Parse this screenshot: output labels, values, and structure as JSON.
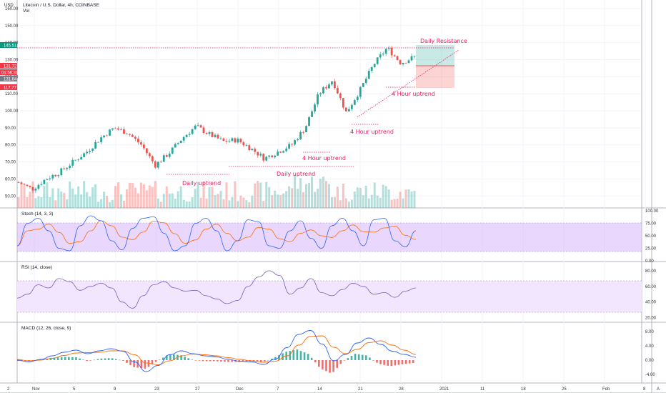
{
  "header": {
    "currency": "USD",
    "symbol_title": "Litecoin / U.S. Dollar, 4h, COINBASE",
    "vol_label": "Vol"
  },
  "price_axis": {
    "ticks": [
      "160.00",
      "150.00",
      "140.00",
      "130.00",
      "120.00",
      "110.00",
      "100.00",
      "90.00",
      "80.00",
      "70.00",
      "60.00",
      "50.00"
    ],
    "badges": [
      {
        "text": "145.51",
        "color": "#089981"
      },
      {
        "text": "131.72",
        "color": "#f23645"
      },
      {
        "text": "01:56:31",
        "color": "#f23645"
      },
      {
        "text": "131.64",
        "color": "#787b86"
      },
      {
        "text": "117.77",
        "color": "#f23645"
      }
    ]
  },
  "annotations": {
    "daily_resistance": "Daily Resistance",
    "daily_uptrend_1": "Daily uptrend",
    "daily_uptrend_2": "Daily uptrend",
    "four_hour_1": "4 Hour uptrend",
    "four_hour_2": "4 Hour uptrend",
    "four_hour_3": "4 Hour uptrend"
  },
  "panes": {
    "stoch": {
      "title": "Stoch (14, 3, 3)",
      "ticks": [
        "100.00",
        "75.00",
        "50.00",
        "25.00",
        "0.00"
      ]
    },
    "rsi": {
      "title": "RSI (14, close)",
      "ticks": [
        "80.00",
        "60.00",
        "40.00",
        "20.00"
      ]
    },
    "macd": {
      "title": "MACD (12, 26, close, 9)",
      "ticks": [
        "8.00",
        "4.00",
        "0.00",
        "-4.00"
      ]
    }
  },
  "time_axis": {
    "ticks": [
      "Nov",
      "5",
      "9",
      "23",
      "27",
      "Dec",
      "7",
      "14",
      "21",
      "28",
      "2021",
      "11",
      "18",
      "25",
      "Feb",
      "8"
    ],
    "corner_left": "2",
    "corner_right": "A"
  },
  "colors": {
    "up": "#26a69a",
    "down": "#ef5350",
    "stoch_band": "#d8b6fb",
    "rsi_band": "#f1e6fd",
    "annotation": "#e91e63",
    "k_line": "#2962ff",
    "d_line": "#ff6d00",
    "rsi_line": "#7e57c2"
  },
  "chart_data": {
    "type": "candlestick",
    "title": "Litecoin / U.S. Dollar, 4h, COINBASE",
    "ylabel": "USD",
    "ylim": [
      43,
      165
    ],
    "levels": {
      "daily_resistance": 145.51,
      "last_price": 131.72,
      "stop": 117.77,
      "daily_uptrend_1": 62.5,
      "daily_uptrend_2": 67.5
    },
    "price_waypoints": [
      {
        "x": "Oct 29",
        "close": 58
      },
      {
        "x": "Nov 3",
        "close": 54
      },
      {
        "x": "Nov 7",
        "close": 60
      },
      {
        "x": "Nov 11",
        "close": 64
      },
      {
        "x": "Nov 15",
        "close": 70
      },
      {
        "x": "Nov 17",
        "close": 76
      },
      {
        "x": "Nov 19",
        "close": 84
      },
      {
        "x": "Nov 21",
        "close": 90
      },
      {
        "x": "Nov 23",
        "close": 87
      },
      {
        "x": "Nov 25",
        "close": 80
      },
      {
        "x": "Nov 26",
        "close": 68
      },
      {
        "x": "Nov 28",
        "close": 75
      },
      {
        "x": "Nov 30",
        "close": 84
      },
      {
        "x": "Dec 1",
        "close": 91
      },
      {
        "x": "Dec 3",
        "close": 86
      },
      {
        "x": "Dec 5",
        "close": 82
      },
      {
        "x": "Dec 7",
        "close": 83
      },
      {
        "x": "Dec 9",
        "close": 78
      },
      {
        "x": "Dec 11",
        "close": 72
      },
      {
        "x": "Dec 13",
        "close": 76
      },
      {
        "x": "Dec 15",
        "close": 80
      },
      {
        "x": "Dec 16",
        "close": 90
      },
      {
        "x": "Dec 18",
        "close": 110
      },
      {
        "x": "Dec 20",
        "close": 118
      },
      {
        "x": "Dec 22",
        "close": 99
      },
      {
        "x": "Dec 24",
        "close": 112
      },
      {
        "x": "Dec 26",
        "close": 127
      },
      {
        "x": "Dec 28",
        "close": 137
      },
      {
        "x": "Dec 30",
        "close": 128
      },
      {
        "x": "Jan 1",
        "close": 131.7
      }
    ],
    "stoch_ylim": [
      0,
      100
    ],
    "stoch_band": [
      20,
      80
    ],
    "stoch_k": [
      30,
      75,
      85,
      60,
      25,
      20,
      70,
      90,
      80,
      40,
      22,
      65,
      85,
      88,
      55,
      20,
      30,
      75,
      85,
      60,
      20,
      40,
      82,
      78,
      30,
      25,
      60,
      80,
      45,
      25,
      70,
      85,
      60,
      30,
      82,
      85,
      40,
      28,
      60
    ],
    "rsi_ylim": [
      15,
      90
    ],
    "rsi_band": [
      30,
      70
    ],
    "rsi": [
      45,
      50,
      62,
      58,
      70,
      66,
      55,
      60,
      64,
      58,
      40,
      32,
      48,
      62,
      66,
      58,
      54,
      55,
      48,
      44,
      38,
      42,
      60,
      72,
      80,
      74,
      50,
      58,
      70,
      52,
      48,
      56,
      64,
      60,
      50,
      52,
      46,
      54,
      58
    ],
    "macd_ylim": [
      -6,
      10
    ],
    "macd": [
      0,
      -0.5,
      0.2,
      1.2,
      2.2,
      2.8,
      1.8,
      2.6,
      3.2,
      2.5,
      -0.5,
      -3.2,
      -1.5,
      1.5,
      2.6,
      1.8,
      1.2,
      0.9,
      0.2,
      -0.3,
      -0.5,
      -1.2,
      0.3,
      3.5,
      7.2,
      8.3,
      4.5,
      -0.2,
      1.6,
      4.8,
      6.2,
      4.4,
      2.5,
      1.6,
      0.8
    ],
    "macd_signal": [
      0.2,
      -0.2,
      0,
      0.5,
      1.3,
      2,
      2.1,
      2.2,
      2.6,
      2.6,
      1.5,
      -0.8,
      -1.3,
      -0.2,
      1.2,
      1.7,
      1.5,
      1.2,
      0.7,
      0.2,
      -0.2,
      -0.6,
      -0.3,
      1.2,
      4.2,
      6.6,
      6.8,
      3.6,
      1.8,
      3,
      4.9,
      5.4,
      4.2,
      2.8,
      1.6
    ]
  }
}
